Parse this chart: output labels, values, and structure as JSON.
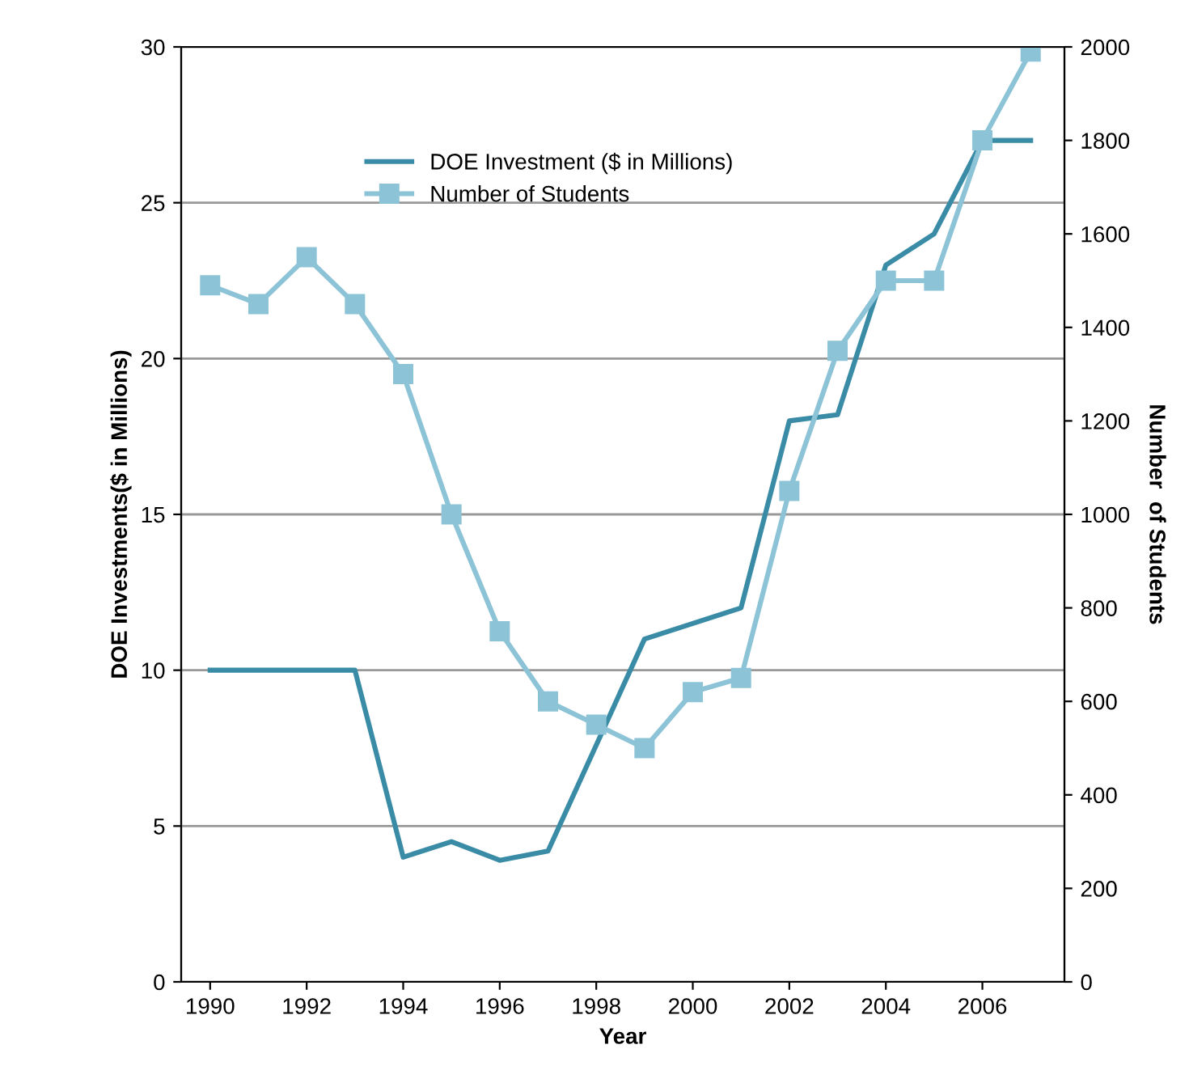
{
  "chart_data": {
    "type": "line",
    "xlabel": "Year",
    "ylabel": "DOE Investments($ in Millions)",
    "y2label": "Number  of Students",
    "x": [
      1990,
      1991,
      1992,
      1993,
      1994,
      1995,
      1996,
      1997,
      1998,
      1999,
      2000,
      2001,
      2002,
      2003,
      2004,
      2005,
      2006,
      2007
    ],
    "series": [
      {
        "name": "DOE Investment ($ in Millions)",
        "color": "#3a8ca6",
        "marker": "none",
        "values": [
          10,
          10,
          10,
          10,
          4,
          4.5,
          3.9,
          4.2,
          7.6,
          11,
          11.5,
          12,
          18,
          18.2,
          23,
          24,
          27,
          27
        ]
      },
      {
        "name": "Number of Students",
        "color": "#8cc3d6",
        "marker": "square",
        "axis": "y2",
        "values": [
          1490,
          1450,
          1550,
          1450,
          1300,
          1000,
          750,
          600,
          550,
          500,
          620,
          650,
          1050,
          1350,
          1500,
          1500,
          1800,
          1990
        ]
      }
    ],
    "xlim": [
      1989.4,
      2007.7
    ],
    "xticks": [
      1990,
      1992,
      1994,
      1996,
      1998,
      2000,
      2002,
      2004,
      2006
    ],
    "ylim": [
      0,
      30
    ],
    "yticks": [
      0,
      5,
      10,
      15,
      20,
      25,
      30
    ],
    "y2lim": [
      0,
      2000
    ],
    "y2ticks": [
      0,
      200,
      400,
      600,
      800,
      1000,
      1200,
      1400,
      1600,
      1800,
      2000
    ],
    "grid": "y",
    "legend": "top left",
    "line_style": "solid"
  }
}
